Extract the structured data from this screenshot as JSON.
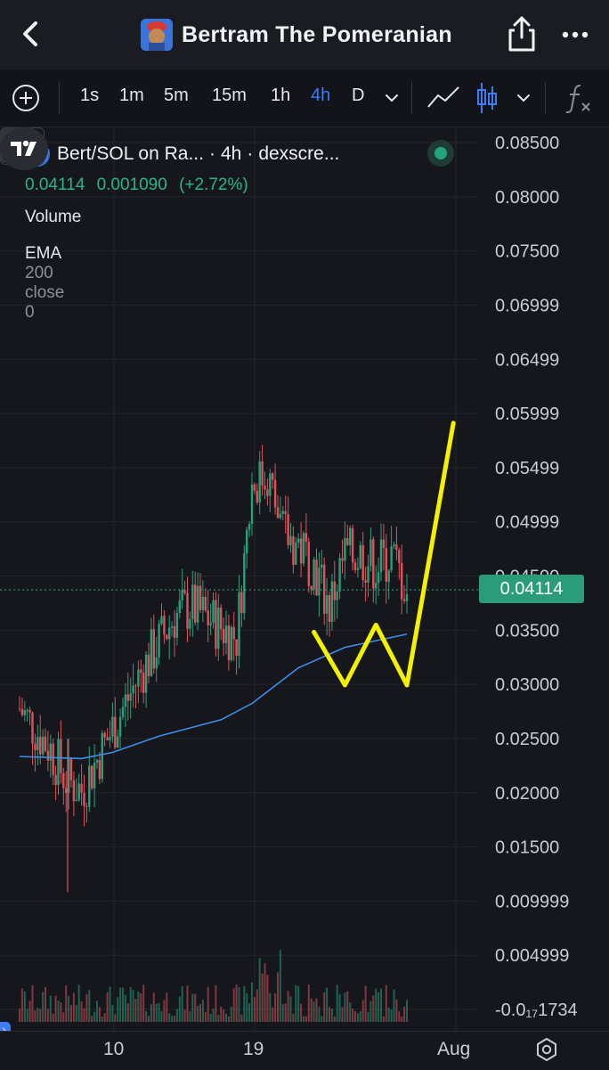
{
  "header": {
    "title": "Bertram The Pomeranian"
  },
  "toolbar": {
    "intervals": [
      "1s",
      "1m",
      "5m",
      "15m",
      "1h",
      "4h",
      "D"
    ],
    "active_interval": "4h"
  },
  "legend": {
    "pair": "Bert/SOL on Ra...",
    "interval": "4h",
    "source": "dexscre...",
    "last": "0.04114",
    "change": "0.001090",
    "change_pct": "(+2.72%)",
    "volume_label": "Volume",
    "ema_label": "EMA",
    "ema_params": "200 close 0"
  },
  "price_badge": "0.04114",
  "colors": {
    "up": "#26a17a",
    "down": "#e0525a",
    "ema": "#3d8ee8",
    "annotation": "#f4f000",
    "accent": "#3d7cf5"
  },
  "chart_data": {
    "type": "candlestick",
    "x_labels": [
      "10",
      "19",
      "Aug"
    ],
    "y_ticks": [
      "0.08500",
      "0.08000",
      "0.07500",
      "0.06999",
      "0.06499",
      "0.05999",
      "0.05499",
      "0.04999",
      "0.04500",
      "0.04114",
      "0.03500",
      "0.03000",
      "0.02500",
      "0.02000",
      "0.01500",
      "0.009999",
      "0.004999",
      "-0.0₁₇1734"
    ],
    "ylim": [
      0,
      0.085
    ],
    "last_price": 0.04114,
    "price_path": [
      {
        "x": "Jul 4",
        "y": 0.0295
      },
      {
        "x": "Jul 6",
        "y": 0.0255
      },
      {
        "x": "Jul 7",
        "y": 0.0225
      },
      {
        "x": "Jul 8",
        "y": 0.0215
      },
      {
        "x": "Jul 10",
        "y": 0.0275
      },
      {
        "x": "Jul 12",
        "y": 0.0335
      },
      {
        "x": "Jul 14",
        "y": 0.0385
      },
      {
        "x": "Jul 15",
        "y": 0.0395
      },
      {
        "x": "Jul 17",
        "y": 0.0375
      },
      {
        "x": "Jul 18",
        "y": 0.0365
      },
      {
        "x": "Jul 19",
        "y": 0.0515
      },
      {
        "x": "Jul 20",
        "y": 0.0525
      },
      {
        "x": "Jul 21",
        "y": 0.0465
      },
      {
        "x": "Jul 22",
        "y": 0.0455
      },
      {
        "x": "Jul 23",
        "y": 0.0435
      },
      {
        "x": "Jul 24",
        "y": 0.0395
      },
      {
        "x": "Jul 25",
        "y": 0.0445
      },
      {
        "x": "Jul 26",
        "y": 0.0445
      },
      {
        "x": "Jul 27",
        "y": 0.0435
      },
      {
        "x": "Jul 28",
        "y": 0.0445
      },
      {
        "x": "Jul 29",
        "y": 0.0411
      }
    ],
    "ema_200": [
      {
        "x": "Jul 4",
        "y": 0.0248
      },
      {
        "x": "Jul 8",
        "y": 0.0246
      },
      {
        "x": "Jul 10",
        "y": 0.0252
      },
      {
        "x": "Jul 13",
        "y": 0.0268
      },
      {
        "x": "Jul 17",
        "y": 0.0284
      },
      {
        "x": "Jul 19",
        "y": 0.03
      },
      {
        "x": "Jul 22",
        "y": 0.0335
      },
      {
        "x": "Jul 25",
        "y": 0.0355
      },
      {
        "x": "Jul 29",
        "y": 0.0368
      }
    ],
    "annotation": [
      {
        "x": "Jul 23",
        "y": 0.037
      },
      {
        "x": "Jul 25",
        "y": 0.0318
      },
      {
        "x": "Jul 27",
        "y": 0.0377
      },
      {
        "x": "Jul 29",
        "y": 0.0318
      },
      {
        "x": "Aug 1",
        "y": 0.0575
      }
    ]
  }
}
